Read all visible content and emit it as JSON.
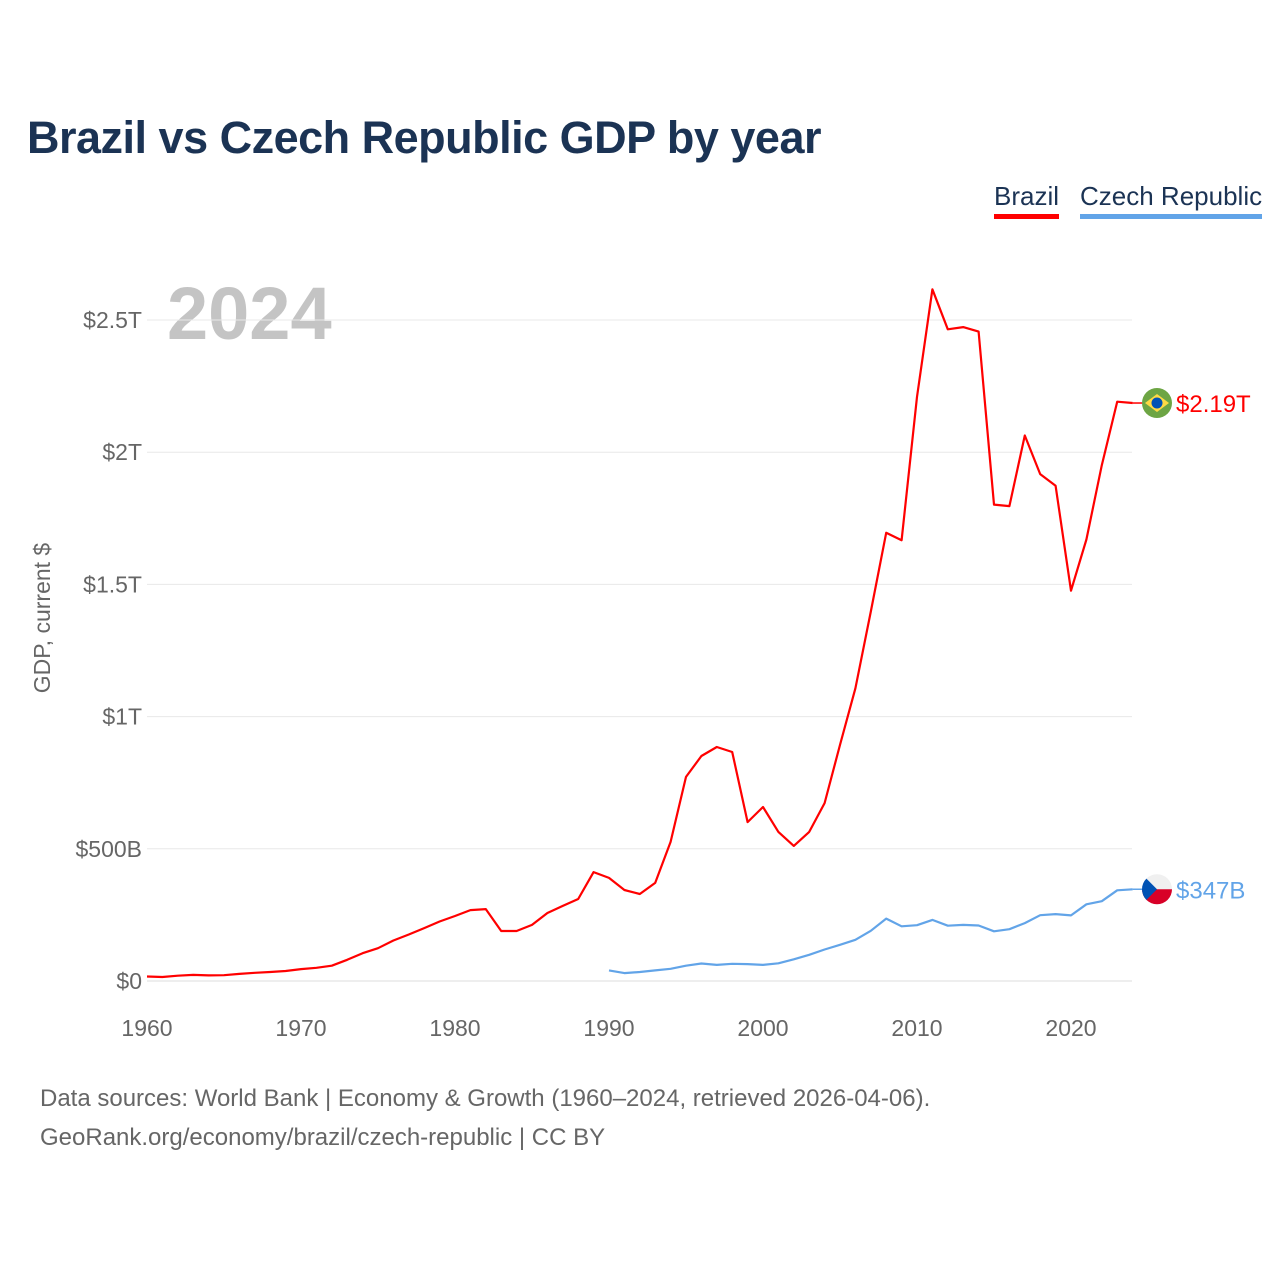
{
  "title": "Brazil vs Czech Republic GDP by year",
  "footer": {
    "line1": "Data sources: World Bank | Economy & Growth (1960–2024, retrieved 2026-04-06).",
    "line2": "GeoRank.org/economy/brazil/czech-republic | CC BY"
  },
  "chart_data": {
    "type": "line",
    "title": "Brazil vs Czech Republic GDP by year",
    "ylabel": "GDP, current $",
    "xlabel": "",
    "year_watermark": "2024",
    "xlim": [
      1960,
      2024
    ],
    "ylim": [
      0,
      2750
    ],
    "units": "billions USD",
    "x_ticks": [
      1960,
      1970,
      1980,
      1990,
      2000,
      2010,
      2020
    ],
    "y_ticks": [
      {
        "value": 0,
        "label": "$0"
      },
      {
        "value": 500,
        "label": "$500B"
      },
      {
        "value": 1000,
        "label": "$1T"
      },
      {
        "value": 1500,
        "label": "$1.5T"
      },
      {
        "value": 2000,
        "label": "$2T"
      },
      {
        "value": 2500,
        "label": "$2.5T"
      }
    ],
    "grid": true,
    "legend": "top-right",
    "series": [
      {
        "name": "Brazil",
        "color": "#ff0000",
        "flag": "brazil-flag",
        "end_label": "$2.19T",
        "start_year": 1960,
        "values": [
          17,
          15,
          20,
          23,
          21,
          22,
          27,
          31,
          34,
          38,
          45,
          50,
          58,
          80,
          105,
          124,
          153,
          176,
          200,
          225,
          246,
          268,
          272,
          189,
          189,
          212,
          257,
          284,
          310,
          412,
          390,
          344,
          329,
          371,
          526,
          772,
          851,
          885,
          866,
          601,
          658,
          564,
          511,
          564,
          673,
          893,
          1107,
          1397,
          1695,
          1667,
          2209,
          2616,
          2465,
          2473,
          2456,
          1802,
          1796,
          2063,
          1917,
          1873,
          1476,
          1670,
          1951,
          2191,
          2186
        ]
      },
      {
        "name": "Czech Republic",
        "color": "#62a4e8",
        "flag": "czech-flag",
        "end_label": "$347B",
        "start_year": 1990,
        "values": [
          40,
          30,
          34,
          40,
          46,
          58,
          66,
          61,
          65,
          64,
          61,
          67,
          82,
          99,
          119,
          137,
          156,
          190,
          236,
          207,
          211,
          231,
          209,
          212,
          210,
          188,
          196,
          219,
          249,
          253,
          248,
          290,
          302,
          343,
          347
        ]
      }
    ]
  }
}
